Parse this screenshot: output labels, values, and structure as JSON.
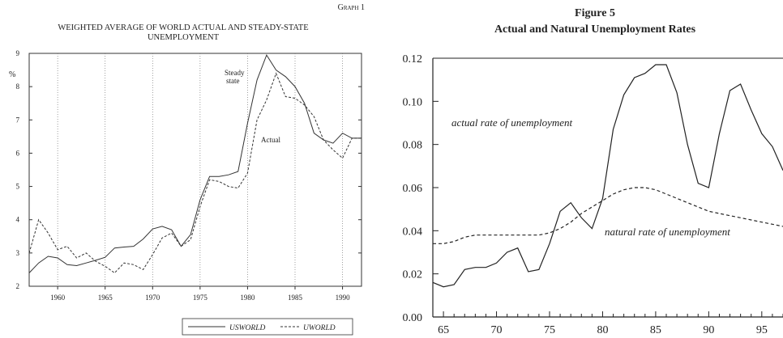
{
  "chart_data": [
    {
      "type": "line",
      "graph_label": "Graph 1",
      "title": "WEIGHTED AVERAGE OF WORLD ACTUAL AND STEADY-STATE UNEMPLOYMENT",
      "title_lines": [
        "WEIGHTED AVERAGE OF WORLD ACTUAL AND STEADY-STATE",
        "UNEMPLOYMENT"
      ],
      "ylabel": "%",
      "xlabel": "",
      "xlim": [
        1957,
        1992
      ],
      "ylim": [
        2,
        9
      ],
      "xticks": [
        1960,
        1965,
        1970,
        1975,
        1980,
        1985,
        1990
      ],
      "yticks": [
        2,
        3,
        4,
        5,
        6,
        7,
        8,
        9
      ],
      "grid": "vertical dotted",
      "legend_position": "bottom-right",
      "annotations": [
        "Steady",
        "state",
        "Actual"
      ],
      "series": [
        {
          "name": "USWORLD",
          "style": "solid",
          "x": [
            1957,
            1958,
            1959,
            1960,
            1961,
            1962,
            1963,
            1964,
            1965,
            1966,
            1967,
            1968,
            1969,
            1970,
            1971,
            1972,
            1973,
            1974,
            1975,
            1976,
            1977,
            1978,
            1979,
            1980,
            1981,
            1982,
            1983,
            1984,
            1985,
            1986,
            1987,
            1988,
            1989,
            1990,
            1991,
            1992
          ],
          "values": [
            2.4,
            2.7,
            2.9,
            2.85,
            2.65,
            2.62,
            2.7,
            2.78,
            2.87,
            3.15,
            3.18,
            3.2,
            3.42,
            3.72,
            3.8,
            3.7,
            3.2,
            3.55,
            4.6,
            5.3,
            5.3,
            5.35,
            5.45,
            6.9,
            8.2,
            8.95,
            8.5,
            8.3,
            8.0,
            7.5,
            6.6,
            6.4,
            6.3,
            6.6,
            6.45,
            6.45
          ]
        },
        {
          "name": "UWORLD",
          "style": "dashed",
          "x": [
            1957,
            1958,
            1959,
            1960,
            1961,
            1962,
            1963,
            1964,
            1965,
            1966,
            1967,
            1968,
            1969,
            1970,
            1971,
            1972,
            1973,
            1974,
            1975,
            1976,
            1977,
            1978,
            1979,
            1980,
            1981,
            1982,
            1983,
            1984,
            1985,
            1986,
            1987,
            1988,
            1989,
            1990,
            1991,
            1992
          ],
          "values": [
            3.0,
            4.0,
            3.6,
            3.1,
            3.2,
            2.85,
            3.0,
            2.75,
            2.6,
            2.4,
            2.7,
            2.65,
            2.5,
            2.95,
            3.45,
            3.6,
            3.2,
            3.4,
            4.4,
            5.2,
            5.15,
            5.0,
            4.95,
            5.4,
            7.0,
            7.6,
            8.4,
            7.7,
            7.65,
            7.45,
            7.1,
            6.4,
            6.1,
            5.85,
            6.45,
            6.45
          ]
        }
      ]
    },
    {
      "type": "line",
      "title": "Figure 5",
      "subtitle": "Actual and Natural Unemployment Rates",
      "xlabel": "",
      "ylabel": "",
      "xlim": [
        1964,
        1997
      ],
      "ylim": [
        0,
        0.12
      ],
      "xticks": [
        65,
        70,
        75,
        80,
        85,
        90,
        95
      ],
      "yticks": [
        "0.00",
        "0.02",
        "0.04",
        "0.06",
        "0.08",
        "0.10",
        "0.12"
      ],
      "grid": "off",
      "annotations": [
        "actual rate of unemployment",
        "natural rate of unemployment"
      ],
      "series": [
        {
          "name": "actual rate of unemployment",
          "style": "solid",
          "x": [
            1964,
            1965,
            1966,
            1967,
            1968,
            1969,
            1970,
            1971,
            1972,
            1973,
            1974,
            1975,
            1976,
            1977,
            1978,
            1979,
            1980,
            1981,
            1982,
            1983,
            1984,
            1985,
            1986,
            1987,
            1988,
            1989,
            1990,
            1991,
            1992,
            1993,
            1994,
            1995,
            1996,
            1997
          ],
          "values": [
            0.016,
            0.014,
            0.015,
            0.022,
            0.023,
            0.023,
            0.025,
            0.03,
            0.032,
            0.021,
            0.022,
            0.034,
            0.049,
            0.053,
            0.046,
            0.041,
            0.055,
            0.087,
            0.103,
            0.111,
            0.113,
            0.117,
            0.117,
            0.104,
            0.08,
            0.062,
            0.06,
            0.085,
            0.105,
            0.108,
            0.096,
            0.085,
            0.079,
            0.068
          ]
        },
        {
          "name": "natural rate of unemployment",
          "style": "dashed",
          "x": [
            1964,
            1965,
            1966,
            1967,
            1968,
            1969,
            1970,
            1971,
            1972,
            1973,
            1974,
            1975,
            1976,
            1977,
            1978,
            1979,
            1980,
            1981,
            1982,
            1983,
            1984,
            1985,
            1986,
            1987,
            1988,
            1989,
            1990,
            1991,
            1992,
            1993,
            1994,
            1995,
            1996,
            1997
          ],
          "values": [
            0.034,
            0.034,
            0.035,
            0.037,
            0.038,
            0.038,
            0.038,
            0.038,
            0.038,
            0.038,
            0.038,
            0.039,
            0.041,
            0.044,
            0.048,
            0.051,
            0.054,
            0.057,
            0.059,
            0.06,
            0.06,
            0.059,
            0.057,
            0.055,
            0.053,
            0.051,
            0.049,
            0.048,
            0.047,
            0.046,
            0.045,
            0.044,
            0.043,
            0.042
          ]
        }
      ]
    }
  ]
}
